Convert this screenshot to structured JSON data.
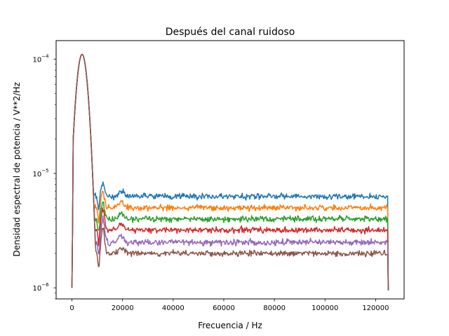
{
  "chart_data": {
    "type": "line",
    "title": "Después del canal ruidoso",
    "xlabel": "Frecuencia / Hz",
    "ylabel": "Densidad espectral de potencia / V**2/Hz",
    "xlim": [
      -6250,
      131250
    ],
    "ylim": [
      8e-07,
      0.000145
    ],
    "yscale": "log",
    "grid": false,
    "x_ticks": [
      0,
      20000,
      40000,
      60000,
      80000,
      100000,
      120000
    ],
    "x_tick_labels": [
      "0",
      "20000",
      "40000",
      "60000",
      "80000",
      "100000",
      "120000"
    ],
    "y_ticks": [
      1e-06,
      1e-05,
      0.0001
    ],
    "y_tick_labels": [
      "10",
      "10",
      "10"
    ],
    "y_tick_exponents": [
      "−6",
      "−5",
      "−4"
    ],
    "peak": {
      "x": 4000,
      "y": 0.00011,
      "x_at_1e-5": 9000
    },
    "series": [
      {
        "color": "#1f77b4",
        "noise_floor": 6.3e-06,
        "secondary_peak": 8.2e-06
      },
      {
        "color": "#ff7f0e",
        "noise_floor": 5e-06,
        "secondary_peak": 6.9e-06
      },
      {
        "color": "#2ca02c",
        "noise_floor": 4e-06,
        "secondary_peak": 5.7e-06
      },
      {
        "color": "#d62728",
        "noise_floor": 3.2e-06,
        "secondary_peak": 4.8e-06
      },
      {
        "color": "#9467bd",
        "noise_floor": 2.5e-06,
        "secondary_peak": 4e-06
      },
      {
        "color": "#8c564b",
        "noise_floor": 2e-06,
        "secondary_peak": 3.3e-06
      }
    ]
  }
}
